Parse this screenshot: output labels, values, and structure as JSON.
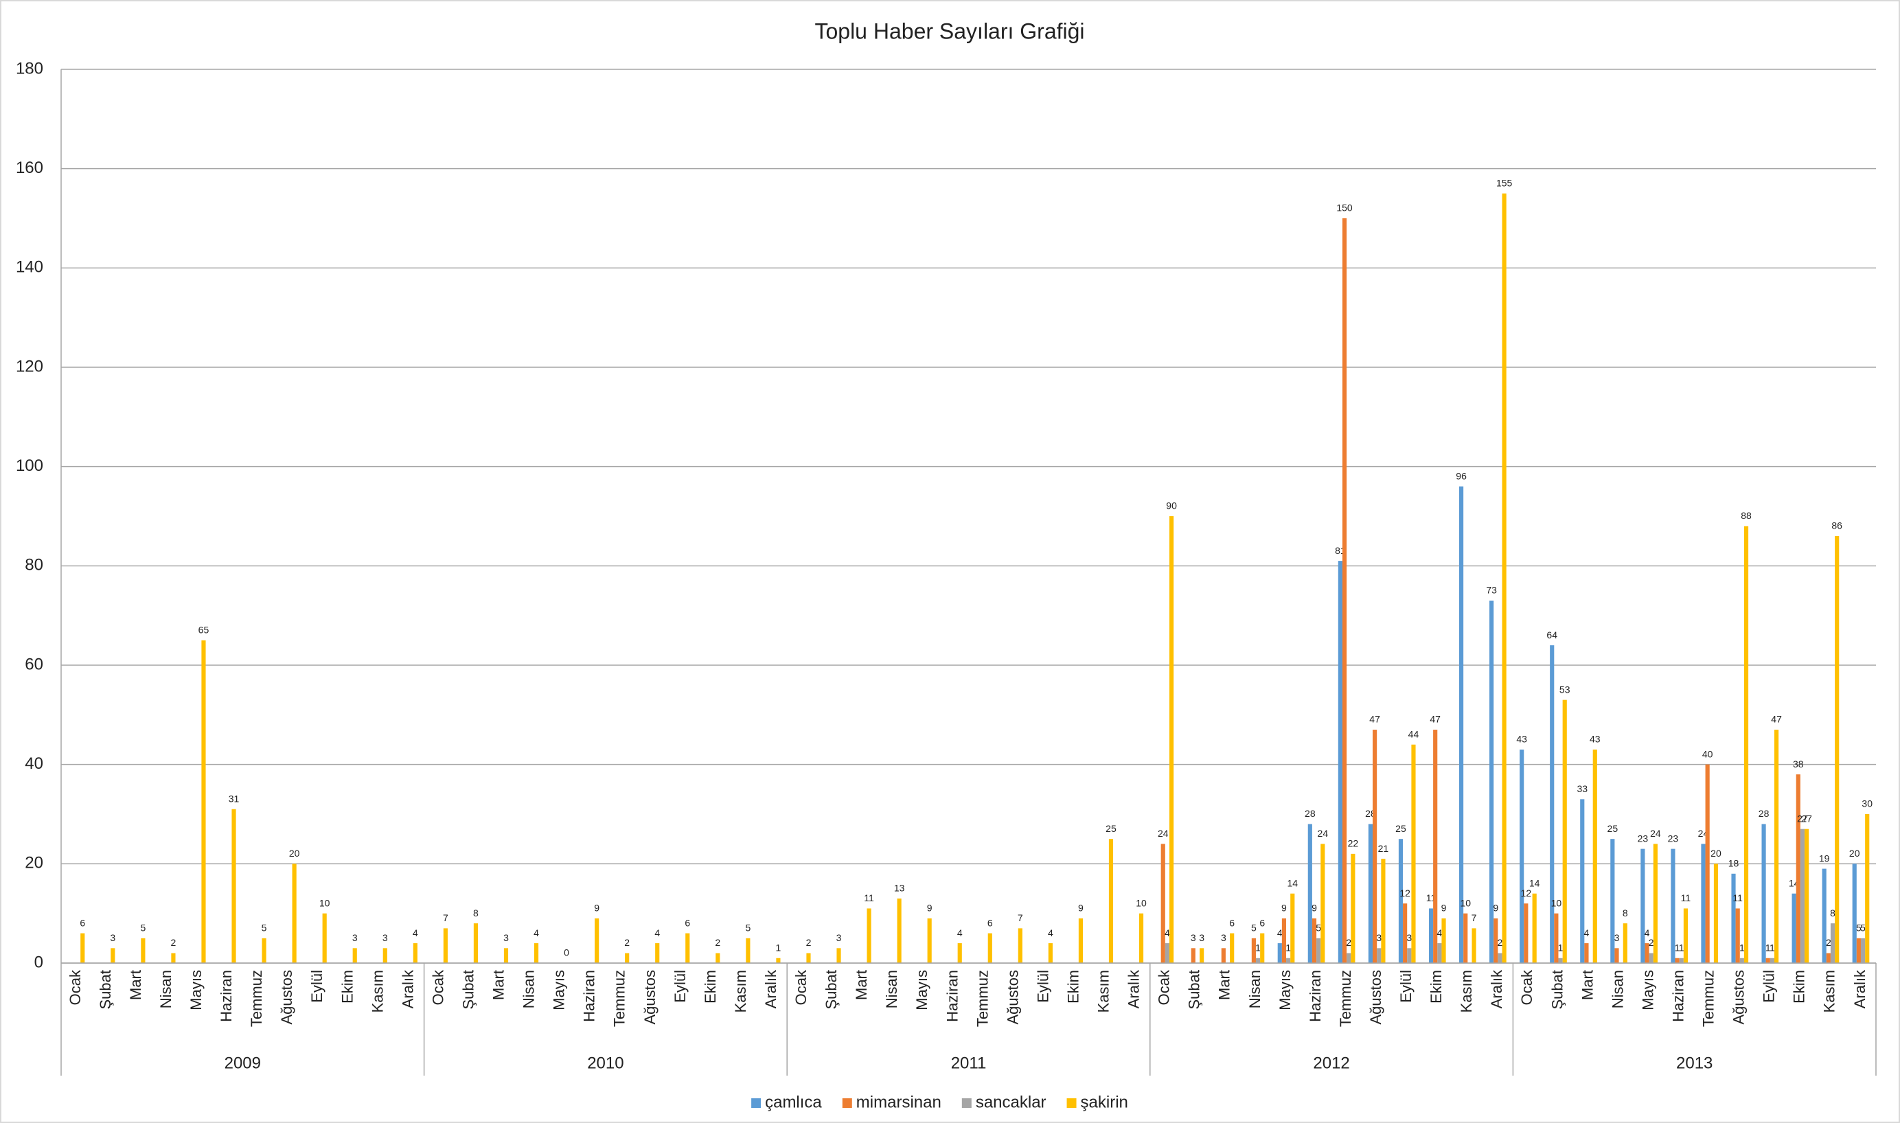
{
  "chart_data": {
    "type": "bar",
    "title": "Toplu Haber Sayıları Grafiği",
    "groups": [
      {
        "name": "2009",
        "categories": [
          "Ocak",
          "Şubat",
          "Mart",
          "Nisan",
          "Mayıs",
          "Haziran",
          "Temmuz",
          "Ağustos",
          "Eylül",
          "Ekim",
          "Kasım",
          "Aralık"
        ]
      },
      {
        "name": "2010",
        "categories": [
          "Ocak",
          "Şubat",
          "Mart",
          "Nisan",
          "Mayıs",
          "Haziran",
          "Temmuz",
          "Ağustos",
          "Eylül",
          "Ekim",
          "Kasım",
          "Aralık"
        ]
      },
      {
        "name": "2011",
        "categories": [
          "Ocak",
          "Şubat",
          "Mart",
          "Nisan",
          "Mayıs",
          "Haziran",
          "Temmuz",
          "Ağustos",
          "Eylül",
          "Ekim",
          "Kasım",
          "Aralık"
        ]
      },
      {
        "name": "2012",
        "categories": [
          "Ocak",
          "Şubat",
          "Mart",
          "Nisan",
          "Mayıs",
          "Haziran",
          "Temmuz",
          "Ağustos",
          "Eylül",
          "Ekim",
          "Kasım",
          "Aralık"
        ]
      },
      {
        "name": "2013",
        "categories": [
          "Ocak",
          "Şubat",
          "Mart",
          "Nisan",
          "Mayıs",
          "Haziran",
          "Temmuz",
          "Ağustos",
          "Eylül",
          "Ekim",
          "Kasım",
          "Aralık"
        ]
      }
    ],
    "series": [
      {
        "name": "çamlıca",
        "color": "#5b9bd5",
        "values": [
          null,
          null,
          null,
          null,
          null,
          null,
          null,
          null,
          null,
          null,
          null,
          null,
          null,
          null,
          null,
          null,
          null,
          null,
          null,
          null,
          null,
          null,
          null,
          null,
          null,
          null,
          null,
          null,
          null,
          null,
          null,
          null,
          null,
          null,
          null,
          null,
          null,
          null,
          null,
          null,
          4,
          28,
          81,
          28,
          25,
          11,
          96,
          73,
          43,
          64,
          33,
          25,
          23,
          23,
          24,
          18,
          28,
          14,
          19,
          20
        ]
      },
      {
        "name": "mimarsinan",
        "color": "#ed7d31",
        "values": [
          null,
          null,
          null,
          null,
          null,
          null,
          null,
          null,
          null,
          null,
          null,
          null,
          null,
          null,
          null,
          null,
          null,
          null,
          null,
          null,
          null,
          null,
          null,
          null,
          null,
          null,
          null,
          null,
          null,
          null,
          null,
          null,
          null,
          null,
          null,
          null,
          24,
          3,
          3,
          5,
          9,
          9,
          150,
          47,
          12,
          47,
          10,
          9,
          12,
          10,
          4,
          3,
          4,
          1,
          40,
          11,
          1,
          38,
          2,
          5
        ]
      },
      {
        "name": "sancaklar",
        "color": "#a5a5a5",
        "values": [
          null,
          null,
          null,
          null,
          null,
          null,
          null,
          null,
          null,
          null,
          null,
          null,
          null,
          null,
          null,
          null,
          null,
          null,
          null,
          null,
          null,
          null,
          null,
          null,
          null,
          null,
          null,
          null,
          null,
          null,
          null,
          null,
          null,
          null,
          null,
          null,
          4,
          null,
          null,
          1,
          1,
          5,
          2,
          3,
          3,
          4,
          null,
          2,
          null,
          1,
          null,
          null,
          2,
          1,
          null,
          1,
          1,
          27,
          8,
          5
        ]
      },
      {
        "name": "şakirin",
        "color": "#ffc000",
        "values": [
          6,
          3,
          5,
          2,
          65,
          31,
          5,
          20,
          10,
          3,
          3,
          4,
          7,
          8,
          3,
          4,
          0,
          9,
          2,
          4,
          6,
          2,
          5,
          1,
          2,
          3,
          11,
          13,
          9,
          4,
          6,
          7,
          4,
          9,
          25,
          10,
          90,
          3,
          6,
          6,
          14,
          24,
          22,
          21,
          44,
          9,
          7,
          155,
          14,
          53,
          43,
          8,
          24,
          11,
          20,
          88,
          47,
          27,
          86,
          30
        ]
      }
    ],
    "ylim": [
      0,
      180
    ],
    "yticks": [
      0,
      20,
      40,
      60,
      80,
      100,
      120,
      140,
      160,
      180
    ],
    "grid": true,
    "legend": "bottom"
  }
}
